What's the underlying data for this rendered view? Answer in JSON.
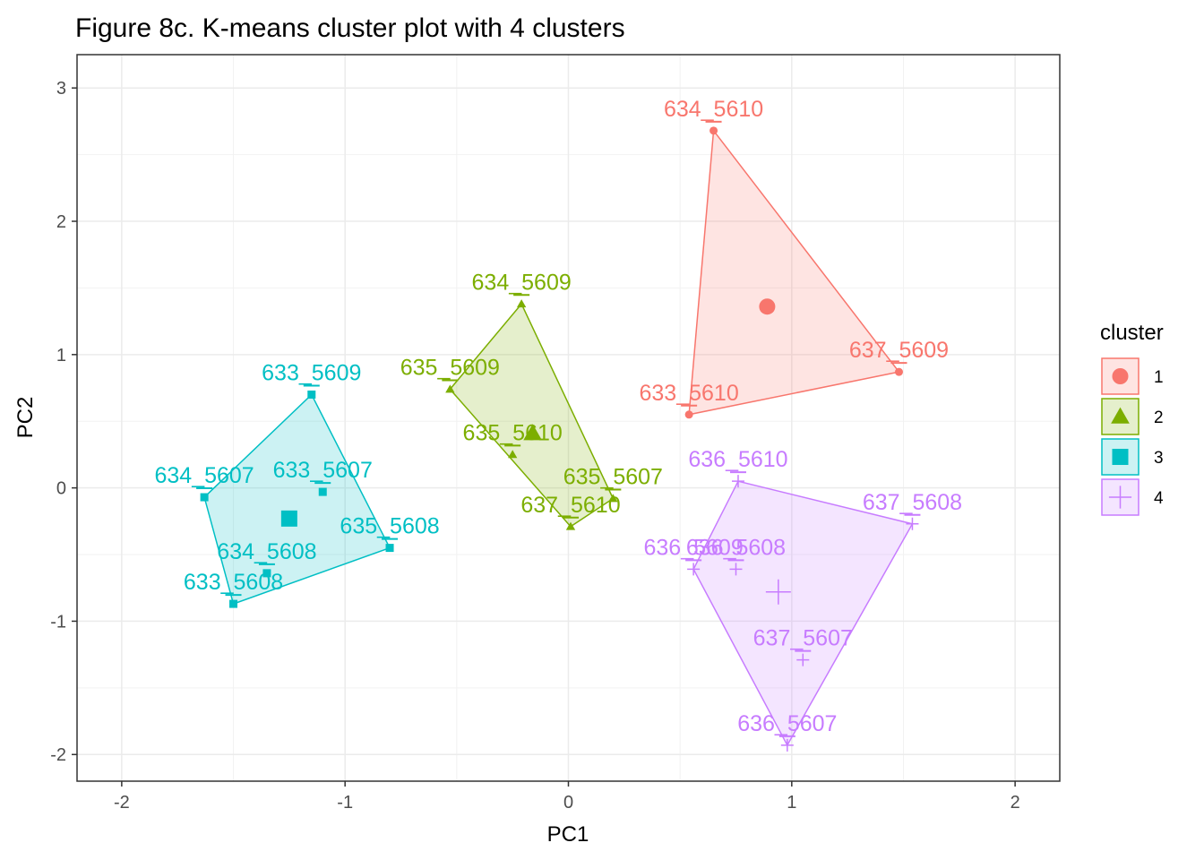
{
  "chart_data": {
    "type": "scatter",
    "title": "Figure 8c. K-means cluster plot with 4 clusters",
    "xlabel": "PC1",
    "ylabel": "PC2",
    "xlim": [
      -2.2,
      2.2
    ],
    "ylim": [
      -2.2,
      3.25
    ],
    "xticks": [
      -2,
      -1,
      0,
      1,
      2
    ],
    "yticks": [
      -2,
      -1,
      0,
      1,
      2,
      3
    ],
    "grid": true,
    "legend": {
      "title": "cluster",
      "position": "right"
    },
    "clusters": [
      {
        "name": "1",
        "color": "#F8766D",
        "shape": "circle",
        "center": {
          "x": 0.89,
          "y": 1.36
        },
        "hull": [
          "634_5610",
          "637_5609",
          "633_5610"
        ],
        "points": [
          {
            "label": "634_5610",
            "x": 0.65,
            "y": 2.68
          },
          {
            "label": "637_5609",
            "x": 1.48,
            "y": 0.87
          },
          {
            "label": "633_5610",
            "x": 0.54,
            "y": 0.55
          }
        ]
      },
      {
        "name": "2",
        "color": "#7CAE00",
        "shape": "triangle",
        "center": {
          "x": -0.16,
          "y": 0.41
        },
        "hull": [
          "634_5609",
          "635_5607",
          "637_5610",
          "635_5609"
        ],
        "points": [
          {
            "label": "634_5609",
            "x": -0.21,
            "y": 1.38
          },
          {
            "label": "635_5609",
            "x": -0.53,
            "y": 0.74
          },
          {
            "label": "635_5610",
            "x": -0.25,
            "y": 0.25
          },
          {
            "label": "635_5607",
            "x": 0.2,
            "y": -0.08
          },
          {
            "label": "637_5610",
            "x": 0.01,
            "y": -0.29
          }
        ]
      },
      {
        "name": "3",
        "color": "#00BFC4",
        "shape": "square",
        "center": {
          "x": -1.25,
          "y": -0.23
        },
        "hull": [
          "633_5609",
          "635_5608",
          "633_5608",
          "634_5607"
        ],
        "points": [
          {
            "label": "633_5609",
            "x": -1.15,
            "y": 0.7
          },
          {
            "label": "634_5607",
            "x": -1.63,
            "y": -0.07
          },
          {
            "label": "633_5607",
            "x": -1.1,
            "y": -0.03
          },
          {
            "label": "635_5608",
            "x": -0.8,
            "y": -0.45
          },
          {
            "label": "634_5608",
            "x": -1.35,
            "y": -0.64
          },
          {
            "label": "633_5608",
            "x": -1.5,
            "y": -0.87
          }
        ]
      },
      {
        "name": "4",
        "color": "#C77CFF",
        "shape": "cross",
        "center": {
          "x": 0.94,
          "y": -0.78
        },
        "hull": [
          "636_5610",
          "637_5608",
          "636_5607",
          "636_5609"
        ],
        "points": [
          {
            "label": "636_5610",
            "x": 0.76,
            "y": 0.05
          },
          {
            "label": "637_5608",
            "x": 1.54,
            "y": -0.27
          },
          {
            "label": "636_5609",
            "x": 0.56,
            "y": -0.61
          },
          {
            "label": "636_5608",
            "x": 0.75,
            "y": -0.61
          },
          {
            "label": "637_5607",
            "x": 1.05,
            "y": -1.29
          },
          {
            "label": "636_5607",
            "x": 0.98,
            "y": -1.93
          }
        ]
      }
    ]
  }
}
